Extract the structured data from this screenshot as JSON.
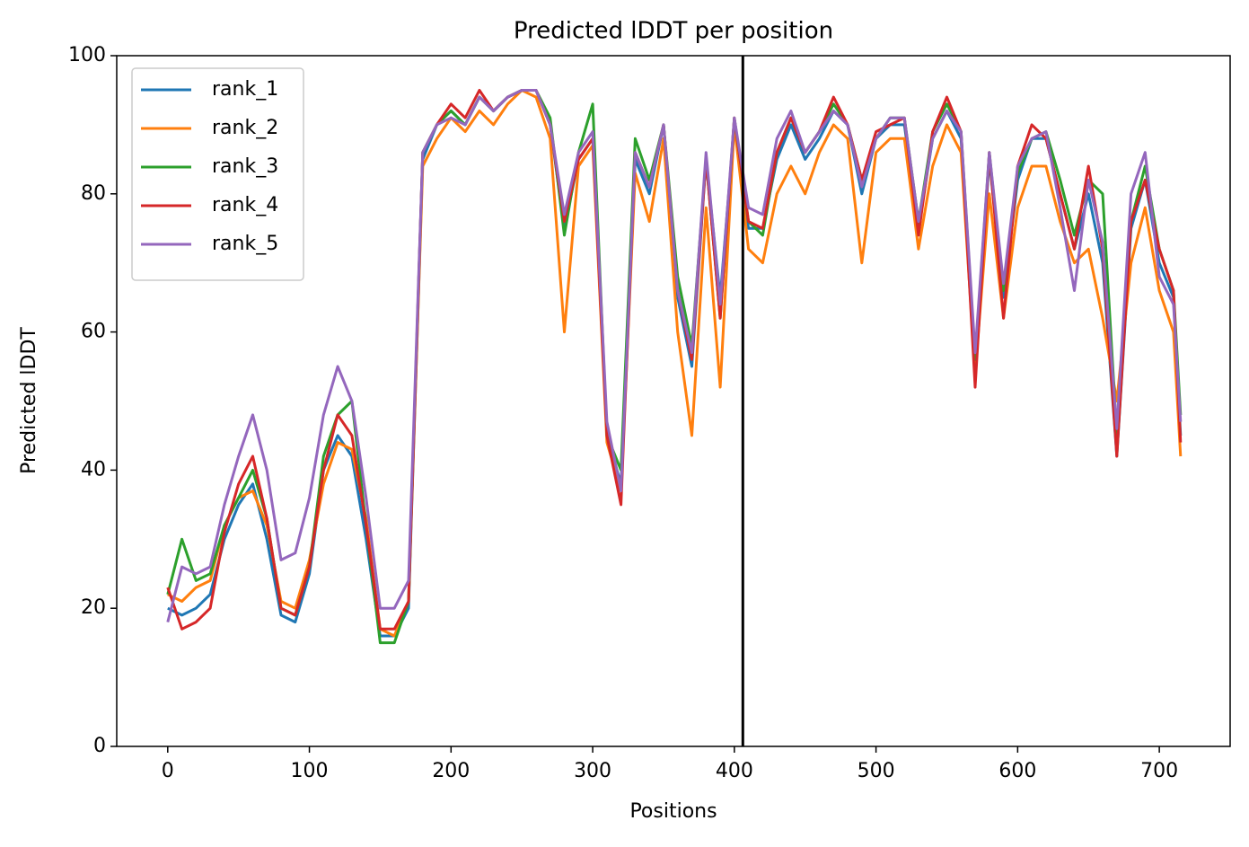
{
  "chart_data": {
    "type": "line",
    "title": "Predicted lDDT per position",
    "xlabel": "Positions",
    "ylabel": "Predicted lDDT",
    "x": [
      0,
      10,
      20,
      30,
      40,
      50,
      60,
      70,
      80,
      90,
      100,
      110,
      120,
      130,
      140,
      150,
      160,
      170,
      180,
      190,
      200,
      210,
      220,
      230,
      240,
      250,
      260,
      270,
      280,
      290,
      300,
      310,
      320,
      330,
      340,
      350,
      360,
      370,
      380,
      390,
      400,
      410,
      420,
      430,
      440,
      450,
      460,
      470,
      480,
      490,
      500,
      510,
      520,
      530,
      540,
      550,
      560,
      570,
      580,
      590,
      600,
      610,
      620,
      630,
      640,
      650,
      660,
      670,
      680,
      690,
      700,
      710,
      715
    ],
    "series": [
      {
        "name": "rank_1",
        "color": "#1f77b4",
        "values": [
          20,
          19,
          20,
          22,
          30,
          35,
          38,
          30,
          19,
          18,
          25,
          40,
          45,
          42,
          30,
          16,
          16,
          20,
          85,
          90,
          92,
          90,
          94,
          92,
          94,
          95,
          95,
          90,
          75,
          85,
          88,
          45,
          38,
          85,
          80,
          90,
          65,
          55,
          85,
          65,
          90,
          75,
          75,
          85,
          90,
          85,
          88,
          92,
          90,
          80,
          88,
          90,
          90,
          75,
          88,
          92,
          88,
          55,
          85,
          65,
          82,
          88,
          88,
          80,
          72,
          80,
          70,
          42,
          75,
          82,
          70,
          65,
          45
        ]
      },
      {
        "name": "rank_2",
        "color": "#ff7f0e",
        "values": [
          22,
          21,
          23,
          24,
          32,
          36,
          37,
          32,
          21,
          20,
          27,
          38,
          44,
          43,
          33,
          17,
          16,
          21,
          84,
          88,
          91,
          89,
          92,
          90,
          93,
          95,
          94,
          88,
          60,
          84,
          87,
          44,
          37,
          83,
          76,
          88,
          60,
          45,
          78,
          52,
          90,
          72,
          70,
          80,
          84,
          80,
          86,
          90,
          88,
          70,
          86,
          88,
          88,
          72,
          84,
          90,
          86,
          54,
          80,
          62,
          78,
          84,
          84,
          76,
          70,
          72,
          62,
          50,
          70,
          78,
          66,
          60,
          42
        ]
      },
      {
        "name": "rank_3",
        "color": "#2ca02c",
        "values": [
          22,
          30,
          24,
          25,
          32,
          36,
          40,
          33,
          20,
          19,
          26,
          42,
          48,
          50,
          32,
          15,
          15,
          21,
          86,
          90,
          92,
          90,
          94,
          92,
          94,
          95,
          95,
          91,
          74,
          86,
          93,
          45,
          40,
          88,
          82,
          90,
          68,
          58,
          85,
          62,
          91,
          76,
          74,
          86,
          91,
          86,
          89,
          93,
          90,
          82,
          88,
          91,
          91,
          76,
          89,
          93,
          89,
          56,
          86,
          66,
          83,
          88,
          89,
          82,
          74,
          82,
          80,
          45,
          76,
          84,
          72,
          66,
          48
        ]
      },
      {
        "name": "rank_4",
        "color": "#d62728",
        "values": [
          23,
          17,
          18,
          20,
          31,
          38,
          42,
          33,
          20,
          19,
          26,
          40,
          48,
          45,
          32,
          17,
          17,
          21,
          86,
          90,
          93,
          91,
          95,
          92,
          94,
          95,
          95,
          90,
          76,
          85,
          88,
          45,
          35,
          86,
          81,
          90,
          66,
          56,
          85,
          62,
          91,
          76,
          75,
          86,
          91,
          86,
          89,
          94,
          90,
          82,
          89,
          90,
          91,
          74,
          89,
          94,
          89,
          52,
          86,
          62,
          84,
          90,
          88,
          80,
          72,
          84,
          72,
          42,
          76,
          82,
          72,
          66,
          44
        ]
      },
      {
        "name": "rank_5",
        "color": "#9467bd",
        "values": [
          18,
          26,
          25,
          26,
          35,
          42,
          48,
          40,
          27,
          28,
          36,
          48,
          55,
          50,
          36,
          20,
          20,
          24,
          86,
          90,
          91,
          90,
          94,
          92,
          94,
          95,
          95,
          90,
          77,
          86,
          89,
          47,
          37,
          86,
          81,
          90,
          66,
          57,
          86,
          64,
          91,
          78,
          77,
          88,
          92,
          86,
          89,
          92,
          90,
          81,
          88,
          91,
          91,
          76,
          88,
          92,
          89,
          57,
          86,
          67,
          84,
          88,
          89,
          78,
          66,
          82,
          73,
          46,
          80,
          86,
          68,
          64,
          47
        ]
      }
    ],
    "vline": 406,
    "vline_color": "#000000",
    "xlim": [
      -36,
      750
    ],
    "ylim": [
      0,
      100
    ],
    "xticks": [
      0,
      100,
      200,
      300,
      400,
      500,
      600,
      700
    ],
    "yticks": [
      0,
      20,
      40,
      60,
      80,
      100
    ],
    "grid": false,
    "legend": "upper left"
  }
}
